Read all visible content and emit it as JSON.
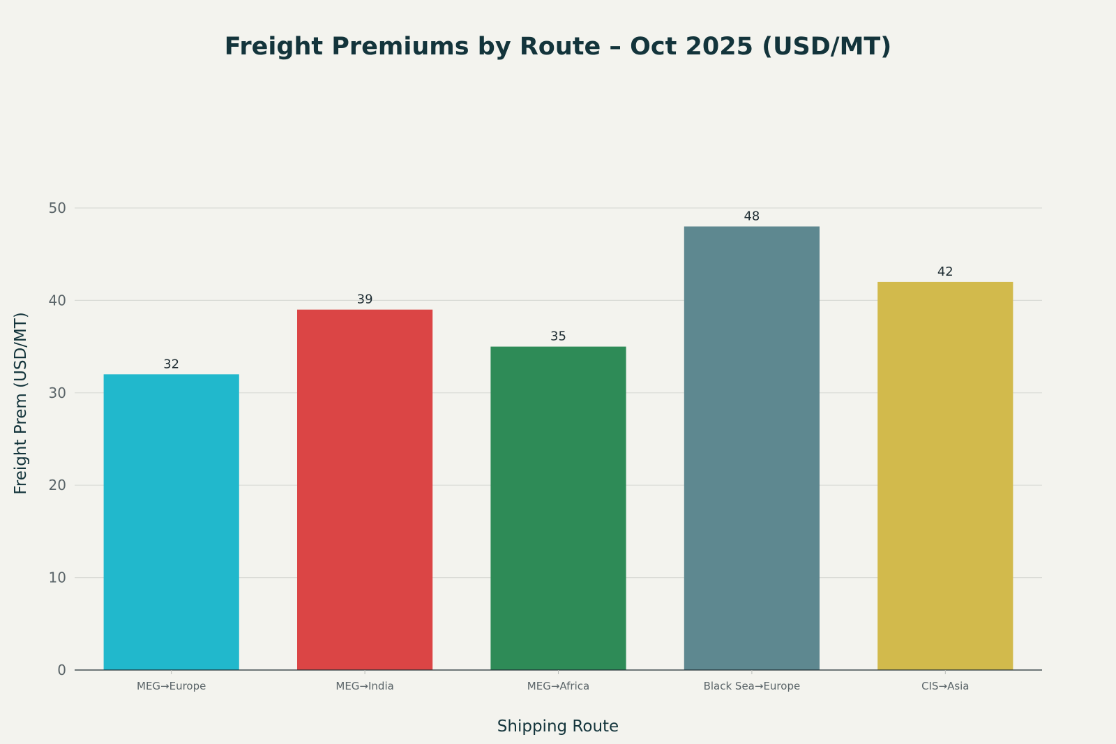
{
  "chart_data": {
    "type": "bar",
    "title": "Freight Premiums by Route – Oct 2025 (USD/MT)",
    "xlabel": "Shipping Route",
    "ylabel": "Freight Prem (USD/MT)",
    "categories": [
      "MEG→Europe",
      "MEG→India",
      "MEG→Africa",
      "Black Sea→Europe",
      "CIS→Asia"
    ],
    "values": [
      32,
      39,
      35,
      48,
      42
    ],
    "value_labels": [
      "32",
      "39",
      "35",
      "48",
      "42"
    ],
    "colors": [
      "#21b8cc",
      "#db4545",
      "#2e8b57",
      "#5e8890",
      "#d2ba4c"
    ],
    "ylim": [
      0,
      50
    ],
    "yticks": [
      0,
      10,
      20,
      30,
      40,
      50
    ],
    "ytick_labels": [
      "0",
      "10",
      "20",
      "30",
      "40",
      "50"
    ],
    "grid": true,
    "legend": "none"
  }
}
